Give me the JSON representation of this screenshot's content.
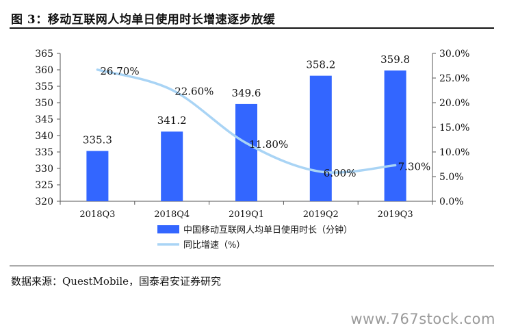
{
  "figure": {
    "title": "图 3：移动互联网人均单日使用时长增速逐步放缓",
    "source": "数据来源：QuestMobile，国泰君安证券研究",
    "watermark": "www.767stock.com"
  },
  "colors": {
    "bar": "#3366ff",
    "line": "#a9d4f5",
    "text": "#111111"
  },
  "chart_data": {
    "type": "bar",
    "categories": [
      "2018Q3",
      "2018Q4",
      "2019Q1",
      "2019Q2",
      "2019Q3"
    ],
    "series": [
      {
        "name": "中国移动互联网人均单日使用时长（分钟）",
        "type": "bar",
        "axis": "left",
        "values": [
          335.3,
          341.2,
          349.6,
          358.2,
          359.8
        ],
        "labels": [
          "335.3",
          "341.2",
          "349.6",
          "358.2",
          "359.8"
        ]
      },
      {
        "name": "同比增速（%）",
        "type": "line",
        "axis": "right",
        "values": [
          26.7,
          22.6,
          11.8,
          6.0,
          7.3
        ],
        "labels": [
          "26.70%",
          "22.60%",
          "11.80%",
          "6.00%",
          "7.30%"
        ]
      }
    ],
    "y_left": {
      "min": 320,
      "max": 365,
      "ticks": [
        "320",
        "325",
        "330",
        "335",
        "340",
        "345",
        "350",
        "355",
        "360",
        "365"
      ]
    },
    "y_right": {
      "min": 0,
      "max": 30,
      "ticks": [
        "0.0%",
        "5.0%",
        "10.0%",
        "15.0%",
        "20.0%",
        "25.0%",
        "30.0%"
      ]
    },
    "grid": false,
    "legend_position": "bottom-center"
  }
}
